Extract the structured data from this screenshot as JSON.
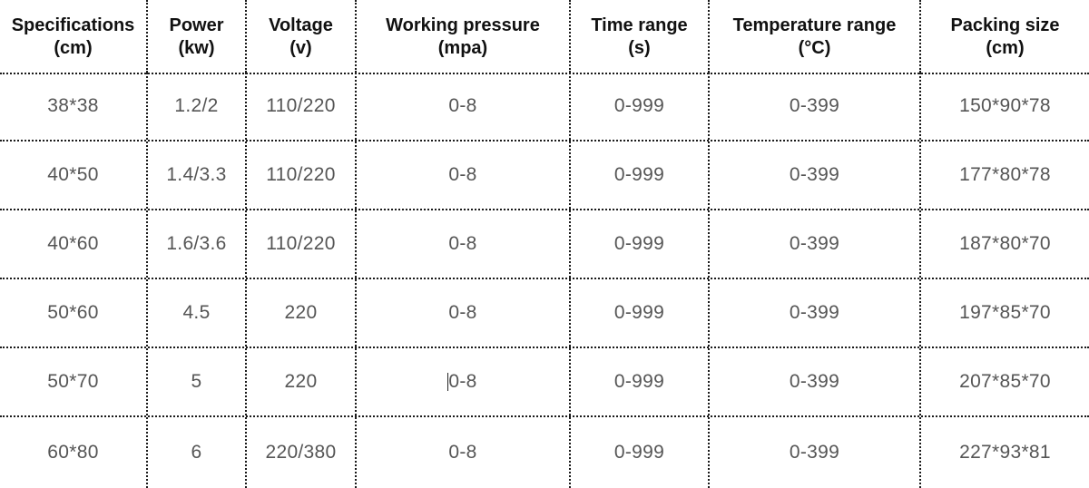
{
  "table": {
    "headers": [
      {
        "line1": "Specifications",
        "line2": "(cm)"
      },
      {
        "line1": "Power",
        "line2": "(kw)"
      },
      {
        "line1": "Voltage",
        "line2": "(v)"
      },
      {
        "line1": "Working pressure",
        "line2": "(mpa)"
      },
      {
        "line1": "Time range",
        "line2": "(s)"
      },
      {
        "line1": "Temperature range",
        "line2": "(°C)"
      },
      {
        "line1": "Packing size",
        "line2": "(cm)"
      }
    ],
    "rows": [
      [
        "38*38",
        "1.2/2",
        "110/220",
        "0-8",
        "0-999",
        "0-399",
        "150*90*78"
      ],
      [
        "40*50",
        "1.4/3.3",
        "110/220",
        "0-8",
        "0-999",
        "0-399",
        "177*80*78"
      ],
      [
        "40*60",
        "1.6/3.6",
        "110/220",
        "0-8",
        "0-999",
        "0-399",
        "187*80*70"
      ],
      [
        "50*60",
        "4.5",
        "220",
        "0-8",
        "0-999",
        "0-399",
        "197*85*70"
      ],
      [
        "50*70",
        "5",
        "220",
        "0-8",
        "0-999",
        "0-399",
        "207*85*70"
      ],
      [
        "60*80",
        "6",
        "220/380",
        "0-8",
        "0-999",
        "0-399",
        "227*93*81"
      ]
    ]
  },
  "colors": {
    "header_text": "#111111",
    "body_text": "#555555",
    "border": "#1a1a1a",
    "background": "#ffffff"
  }
}
